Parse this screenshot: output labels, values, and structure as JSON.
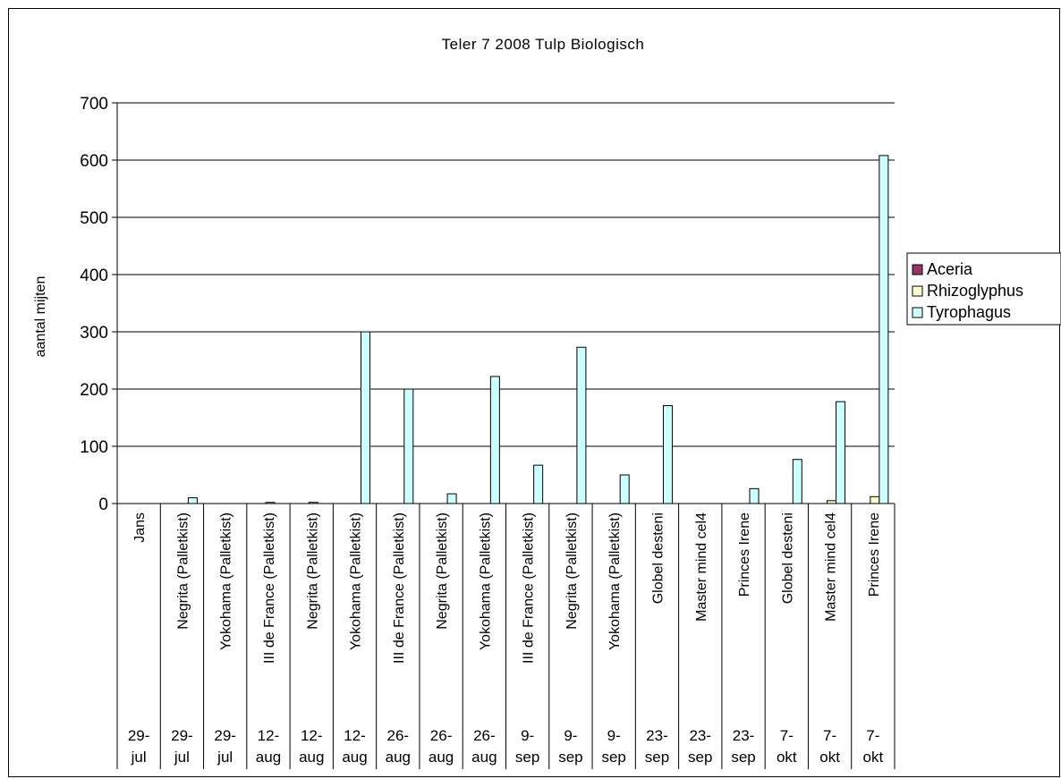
{
  "chart_data": {
    "type": "bar",
    "title": "Teler 7 2008 Tulp Biologisch",
    "ylabel": "aantal mijten",
    "xlabel": "",
    "ylim": [
      0,
      700
    ],
    "yticks": [
      "0",
      "100",
      "200",
      "300",
      "400",
      "500",
      "600",
      "700"
    ],
    "grid": "horizontal",
    "legend_position": "right",
    "categories": [
      "Jans",
      "Negrita (Palletkist)",
      "Yokohama (Palletkist)",
      "III de France (Palletkist)",
      "Negrita (Palletkist)",
      "Yokohama (Palletkist)",
      "III de France (Palletkist)",
      "Negrita (Palletkist)",
      "Yokohama (Palletkist)",
      "III de France (Palletkist)",
      "Negrita (Palletkist)",
      "Yokohama (Palletkist)",
      "Globel desteni",
      "Master mind cel4",
      "Princes Irene",
      "Globel desteni",
      "Master mind cel4",
      "Princes Irene"
    ],
    "dates": [
      [
        "29-",
        "jul"
      ],
      [
        "29-",
        "jul"
      ],
      [
        "29-",
        "jul"
      ],
      [
        "12-",
        "aug"
      ],
      [
        "12-",
        "aug"
      ],
      [
        "12-",
        "aug"
      ],
      [
        "26-",
        "aug"
      ],
      [
        "26-",
        "aug"
      ],
      [
        "26-",
        "aug"
      ],
      [
        "9-",
        "sep"
      ],
      [
        "9-",
        "sep"
      ],
      [
        "9-",
        "sep"
      ],
      [
        "23-",
        "sep"
      ],
      [
        "23-",
        "sep"
      ],
      [
        "23-",
        "sep"
      ],
      [
        "7-",
        "okt"
      ],
      [
        "7-",
        "okt"
      ],
      [
        "7-",
        "okt"
      ]
    ],
    "series": [
      {
        "name": "Aceria",
        "color": "#993366",
        "values": [
          0,
          0,
          0,
          0,
          0,
          0,
          0,
          0,
          0,
          0,
          0,
          0,
          0,
          0,
          0,
          0,
          0,
          0
        ]
      },
      {
        "name": "Rhizoglyphus",
        "color": "#FFFFCC",
        "values": [
          0,
          0,
          0,
          2,
          2,
          0,
          0,
          0,
          0,
          0,
          0,
          0,
          0,
          0,
          0,
          0,
          5,
          12
        ]
      },
      {
        "name": "Tyrophagus",
        "color": "#CCFFFF",
        "values": [
          0,
          10,
          0,
          0,
          0,
          300,
          200,
          17,
          222,
          67,
          273,
          50,
          171,
          0,
          26,
          77,
          178,
          608
        ]
      }
    ]
  }
}
